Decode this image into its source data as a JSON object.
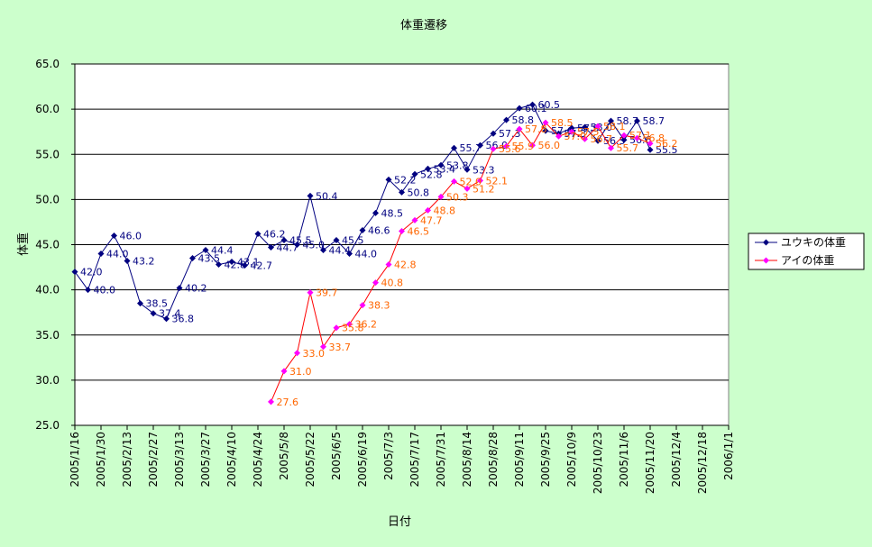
{
  "chart_data": {
    "type": "line",
    "title": "体重遷移",
    "xlabel": "日付",
    "ylabel": "体重",
    "ylim": [
      25.0,
      65.0
    ],
    "y_ticks": [
      "25.0",
      "30.0",
      "35.0",
      "40.0",
      "45.0",
      "50.0",
      "55.0",
      "60.0",
      "65.0"
    ],
    "x_ticks": [
      "2005/1/16",
      "2005/1/30",
      "2005/2/13",
      "2005/2/27",
      "2005/3/13",
      "2005/3/27",
      "2005/4/10",
      "2005/4/24",
      "2005/5/8",
      "2005/5/22",
      "2005/6/5",
      "2005/6/19",
      "2005/7/3",
      "2005/7/17",
      "2005/7/31",
      "2005/8/14",
      "2005/8/28",
      "2005/9/11",
      "2005/9/25",
      "2005/10/9",
      "2005/10/23",
      "2005/11/6",
      "2005/11/20",
      "2005/12/4",
      "2005/12/18",
      "2006/1/1"
    ],
    "xlim": [
      "2005/1/16",
      "2006/1/1"
    ],
    "grid": true,
    "legend_position": "right",
    "series": [
      {
        "name": "ユウキの体重",
        "color": "#000080",
        "label_color": "#000080",
        "marker": "diamond",
        "points": [
          [
            "2005/1/16",
            42.0
          ],
          [
            "2005/1/23",
            40.0
          ],
          [
            "2005/1/30",
            44.0
          ],
          [
            "2005/2/6",
            46.0
          ],
          [
            "2005/2/13",
            43.2
          ],
          [
            "2005/2/20",
            38.5
          ],
          [
            "2005/2/27",
            37.4
          ],
          [
            "2005/3/6",
            36.8
          ],
          [
            "2005/3/13",
            40.2
          ],
          [
            "2005/3/20",
            43.5
          ],
          [
            "2005/3/27",
            44.4
          ],
          [
            "2005/4/3",
            42.8
          ],
          [
            "2005/4/10",
            43.1
          ],
          [
            "2005/4/17",
            42.7
          ],
          [
            "2005/4/24",
            46.2
          ],
          [
            "2005/5/1",
            44.7
          ],
          [
            "2005/5/8",
            45.5
          ],
          [
            "2005/5/15",
            45.0
          ],
          [
            "2005/5/22",
            50.4
          ],
          [
            "2005/5/29",
            44.4
          ],
          [
            "2005/6/5",
            45.5
          ],
          [
            "2005/6/12",
            44.0
          ],
          [
            "2005/6/19",
            46.6
          ],
          [
            "2005/6/26",
            48.5
          ],
          [
            "2005/7/3",
            52.2
          ],
          [
            "2005/7/10",
            50.8
          ],
          [
            "2005/7/17",
            52.8
          ],
          [
            "2005/7/24",
            53.4
          ],
          [
            "2005/7/31",
            53.8
          ],
          [
            "2005/8/7",
            55.7
          ],
          [
            "2005/8/14",
            53.3
          ],
          [
            "2005/8/21",
            56.0
          ],
          [
            "2005/8/28",
            57.3
          ],
          [
            "2005/9/4",
            58.8
          ],
          [
            "2005/9/11",
            60.1
          ],
          [
            "2005/9/18",
            60.5
          ],
          [
            "2005/9/25",
            57.6
          ],
          [
            "2005/10/2",
            57.3
          ],
          [
            "2005/10/9",
            57.9
          ],
          [
            "2005/10/16",
            58.0
          ],
          [
            "2005/10/23",
            56.5
          ],
          [
            "2005/10/30",
            58.7
          ],
          [
            "2005/11/6",
            56.6
          ],
          [
            "2005/11/13",
            58.7
          ],
          [
            "2005/11/20",
            55.5
          ]
        ],
        "labels": [
          [
            "2005/1/16",
            "42.0"
          ],
          [
            "2005/1/23",
            "40.0"
          ],
          [
            "2005/1/30",
            "44.0"
          ],
          [
            "2005/2/6",
            "46.0"
          ],
          [
            "2005/2/13",
            "43.2"
          ],
          [
            "2005/2/20",
            "38.5"
          ],
          [
            "2005/2/27",
            "37.4"
          ],
          [
            "2005/3/6",
            "36.8"
          ],
          [
            "2005/3/13",
            "40.2"
          ],
          [
            "2005/3/20",
            "43.5"
          ],
          [
            "2005/3/27",
            "44.4"
          ],
          [
            "2005/4/3",
            "42.8"
          ],
          [
            "2005/4/10",
            "43.1"
          ],
          [
            "2005/4/17",
            "42.7"
          ],
          [
            "2005/4/24",
            "46.2"
          ],
          [
            "2005/5/1",
            "44.7"
          ],
          [
            "2005/5/8",
            "45.5"
          ],
          [
            "2005/5/15",
            "45.0"
          ],
          [
            "2005/5/22",
            "50.4"
          ],
          [
            "2005/5/29",
            "44.4"
          ],
          [
            "2005/6/5",
            "45.5"
          ],
          [
            "2005/6/12",
            "44.0"
          ],
          [
            "2005/6/19",
            "46.6"
          ],
          [
            "2005/6/26",
            "48.5"
          ],
          [
            "2005/7/3",
            "52.2"
          ],
          [
            "2005/7/10",
            "50.8"
          ],
          [
            "2005/7/17",
            "52.8"
          ],
          [
            "2005/7/24",
            "53.4"
          ],
          [
            "2005/7/31",
            "53.8"
          ],
          [
            "2005/8/7",
            "55.7"
          ],
          [
            "2005/8/14",
            "53.3"
          ],
          [
            "2005/8/21",
            "56.0"
          ],
          [
            "2005/8/28",
            "57.3"
          ],
          [
            "2005/9/4",
            "58.8"
          ],
          [
            "2005/9/11",
            "60.1"
          ],
          [
            "2005/9/18",
            "60.5"
          ],
          [
            "2005/9/25",
            "57.6"
          ],
          [
            "2005/10/2",
            "57.3"
          ],
          [
            "2005/10/9",
            "57.9"
          ],
          [
            "2005/10/16",
            "58.0"
          ],
          [
            "2005/10/23",
            "56.5"
          ],
          [
            "2005/10/30",
            "58.7"
          ],
          [
            "2005/11/6",
            "56.6"
          ],
          [
            "2005/11/13",
            "58.7"
          ],
          [
            "2005/11/20",
            "55.5"
          ]
        ]
      },
      {
        "name": "アイの体重",
        "color": "#ff0000",
        "marker_color": "#ff00ff",
        "label_color": "#ff6600",
        "marker": "diamond",
        "points": [
          [
            "2005/5/1",
            27.6
          ],
          [
            "2005/5/8",
            31.0
          ],
          [
            "2005/5/15",
            33.0
          ],
          [
            "2005/5/22",
            39.7
          ],
          [
            "2005/5/29",
            33.7
          ],
          [
            "2005/6/5",
            35.8
          ],
          [
            "2005/6/12",
            36.2
          ],
          [
            "2005/6/19",
            38.3
          ],
          [
            "2005/6/26",
            40.8
          ],
          [
            "2005/7/3",
            42.8
          ],
          [
            "2005/7/10",
            46.5
          ],
          [
            "2005/7/17",
            47.7
          ],
          [
            "2005/7/24",
            48.8
          ],
          [
            "2005/7/31",
            50.3
          ],
          [
            "2005/8/7",
            52.0
          ],
          [
            "2005/8/14",
            51.2
          ],
          [
            "2005/8/21",
            52.1
          ],
          [
            "2005/8/28",
            55.6
          ],
          [
            "2005/9/4",
            55.9
          ],
          [
            "2005/9/11",
            57.8
          ],
          [
            "2005/9/18",
            56.0
          ],
          [
            "2005/9/25",
            58.5
          ],
          [
            "2005/10/2",
            57.0
          ],
          [
            "2005/10/9",
            57.5
          ],
          [
            "2005/10/16",
            56.7
          ],
          [
            "2005/10/23",
            58.1
          ],
          [
            "2005/10/30",
            55.7
          ],
          [
            "2005/11/6",
            57.1
          ],
          [
            "2005/11/13",
            56.8
          ],
          [
            "2005/11/20",
            56.2
          ]
        ],
        "labels": [
          [
            "2005/5/1",
            "27.6"
          ],
          [
            "2005/5/8",
            "31.0"
          ],
          [
            "2005/5/15",
            "33.0"
          ],
          [
            "2005/5/22",
            "39.7"
          ],
          [
            "2005/5/29",
            "33.7"
          ],
          [
            "2005/6/5",
            "35.8"
          ],
          [
            "2005/6/12",
            "36.2"
          ],
          [
            "2005/6/19",
            "38.3"
          ],
          [
            "2005/6/26",
            "40.8"
          ],
          [
            "2005/7/3",
            "42.8"
          ],
          [
            "2005/7/10",
            "46.5"
          ],
          [
            "2005/7/17",
            "47.7"
          ],
          [
            "2005/7/24",
            "48.8"
          ],
          [
            "2005/7/31",
            "50.3"
          ],
          [
            "2005/8/7",
            "52.0"
          ],
          [
            "2005/8/14",
            "51.2"
          ],
          [
            "2005/8/21",
            "52.1"
          ],
          [
            "2005/8/28",
            "55.6"
          ],
          [
            "2005/9/4",
            "55.9"
          ],
          [
            "2005/9/11",
            "57.8"
          ],
          [
            "2005/9/18",
            "56.0"
          ],
          [
            "2005/9/25",
            "58.5"
          ],
          [
            "2005/10/2",
            "57.0"
          ],
          [
            "2005/10/9",
            "57.5"
          ],
          [
            "2005/10/16",
            "56.7"
          ],
          [
            "2005/10/23",
            "58.1"
          ],
          [
            "2005/10/30",
            "55.7"
          ],
          [
            "2005/11/6",
            "57.1"
          ],
          [
            "2005/11/13",
            "56.8"
          ],
          [
            "2005/11/20",
            "56.2"
          ]
        ]
      }
    ]
  }
}
